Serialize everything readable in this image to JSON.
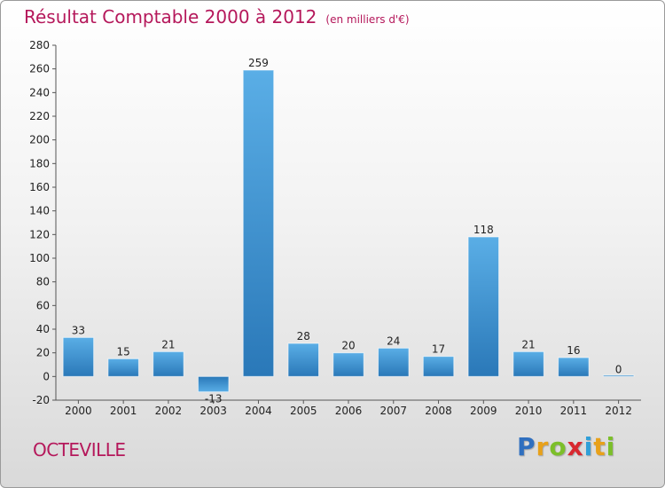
{
  "chart_data": {
    "type": "bar",
    "title": "Résultat Comptable 2000 à 2012",
    "unit": "(en milliers d'€)",
    "categories": [
      "2000",
      "2001",
      "2002",
      "2003",
      "2004",
      "2005",
      "2006",
      "2007",
      "2008",
      "2009",
      "2010",
      "2011",
      "2012"
    ],
    "values": [
      33,
      15,
      21,
      -13,
      259,
      28,
      20,
      24,
      17,
      118,
      21,
      16,
      0
    ],
    "ylim": [
      -20,
      280
    ],
    "yticks": [
      -20,
      0,
      20,
      40,
      60,
      80,
      100,
      120,
      140,
      160,
      180,
      200,
      220,
      240,
      260,
      280
    ],
    "grid": false,
    "colors": {
      "bar_light": "#5aaee6",
      "bar_dark": "#2a78b8",
      "title": "#b5185b"
    }
  },
  "footer": {
    "town": "OCTEVILLE"
  },
  "logo": {
    "letters": [
      {
        "char": "P",
        "color": "#2f6fbf"
      },
      {
        "char": "r",
        "color": "#e8a11a"
      },
      {
        "char": "o",
        "color": "#7cbf2a"
      },
      {
        "char": "x",
        "color": "#d8282f"
      },
      {
        "char": "i",
        "color": "#2f9fd8"
      },
      {
        "char": "t",
        "color": "#e8a11a"
      },
      {
        "char": "i",
        "color": "#7cbf2a"
      }
    ]
  }
}
